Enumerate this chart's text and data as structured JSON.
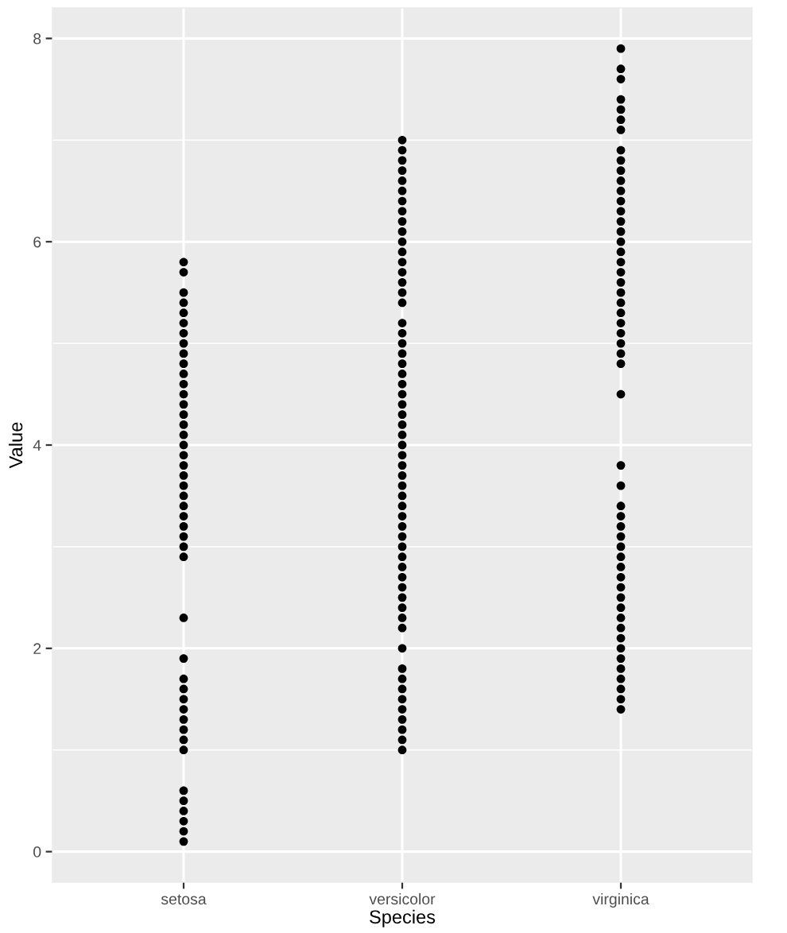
{
  "chart_data": {
    "type": "scatter",
    "xlabel": "Species",
    "ylabel": "Value",
    "categories": [
      "setosa",
      "versicolor",
      "virginica"
    ],
    "ylim": [
      -0.3,
      8.3
    ],
    "yticks": [
      0,
      2,
      4,
      6,
      8
    ],
    "grid": true,
    "marker": "circle",
    "series": [
      {
        "color": "#000000",
        "x": [
          "setosa",
          "setosa",
          "setosa",
          "setosa",
          "setosa",
          "setosa",
          "setosa",
          "setosa",
          "setosa",
          "setosa",
          "setosa",
          "setosa",
          "setosa",
          "setosa",
          "setosa",
          "setosa",
          "setosa",
          "setosa",
          "setosa",
          "setosa",
          "setosa",
          "setosa",
          "setosa",
          "setosa",
          "setosa",
          "setosa",
          "setosa",
          "setosa",
          "setosa",
          "setosa",
          "setosa",
          "setosa",
          "setosa",
          "setosa",
          "setosa",
          "setosa",
          "setosa",
          "setosa",
          "setosa",
          "setosa",
          "setosa",
          "setosa",
          "setosa",
          "setosa",
          "setosa",
          "versicolor",
          "versicolor",
          "versicolor",
          "versicolor",
          "versicolor",
          "versicolor",
          "versicolor",
          "versicolor",
          "versicolor",
          "versicolor",
          "versicolor",
          "versicolor",
          "versicolor",
          "versicolor",
          "versicolor",
          "versicolor",
          "versicolor",
          "versicolor",
          "versicolor",
          "versicolor",
          "versicolor",
          "versicolor",
          "versicolor",
          "versicolor",
          "versicolor",
          "versicolor",
          "versicolor",
          "versicolor",
          "versicolor",
          "versicolor",
          "versicolor",
          "versicolor",
          "versicolor",
          "versicolor",
          "versicolor",
          "versicolor",
          "versicolor",
          "versicolor",
          "versicolor",
          "versicolor",
          "versicolor",
          "versicolor",
          "versicolor",
          "versicolor",
          "versicolor",
          "versicolor",
          "versicolor",
          "versicolor",
          "versicolor",
          "versicolor",
          "versicolor",
          "versicolor",
          "versicolor",
          "versicolor",
          "versicolor",
          "versicolor",
          "versicolor",
          "versicolor",
          "virginica",
          "virginica",
          "virginica",
          "virginica",
          "virginica",
          "virginica",
          "virginica",
          "virginica",
          "virginica",
          "virginica",
          "virginica",
          "virginica",
          "virginica",
          "virginica",
          "virginica",
          "virginica",
          "virginica",
          "virginica",
          "virginica",
          "virginica",
          "virginica",
          "virginica",
          "virginica",
          "virginica",
          "virginica",
          "virginica",
          "virginica",
          "virginica",
          "virginica",
          "virginica",
          "virginica",
          "virginica",
          "virginica",
          "virginica",
          "virginica",
          "virginica",
          "virginica",
          "virginica",
          "virginica",
          "virginica",
          "virginica",
          "virginica",
          "virginica",
          "virginica",
          "virginica",
          "virginica",
          "virginica",
          "virginica",
          "virginica",
          "virginica",
          "virginica",
          "virginica",
          "virginica"
        ],
        "values": [
          0.1,
          0.2,
          0.3,
          0.4,
          0.5,
          0.6,
          1.0,
          1.1,
          1.2,
          1.3,
          1.4,
          1.5,
          1.6,
          1.7,
          1.9,
          2.3,
          2.9,
          3.0,
          3.1,
          3.2,
          3.3,
          3.4,
          3.5,
          3.6,
          3.7,
          3.8,
          3.9,
          4.0,
          4.1,
          4.2,
          4.3,
          4.4,
          4.5,
          4.6,
          4.7,
          4.8,
          4.9,
          5.0,
          5.1,
          5.2,
          5.3,
          5.4,
          5.5,
          5.7,
          5.8,
          1.0,
          1.1,
          1.2,
          1.3,
          1.4,
          1.5,
          1.6,
          1.7,
          1.8,
          2.0,
          2.2,
          2.3,
          2.4,
          2.5,
          2.6,
          2.7,
          2.8,
          2.9,
          3.0,
          3.1,
          3.2,
          3.3,
          3.4,
          3.5,
          3.6,
          3.7,
          3.8,
          3.9,
          4.0,
          4.1,
          4.2,
          4.3,
          4.4,
          4.5,
          4.6,
          4.7,
          4.8,
          4.9,
          5.0,
          5.1,
          5.2,
          5.4,
          5.5,
          5.6,
          5.7,
          5.8,
          5.9,
          6.0,
          6.1,
          6.2,
          6.3,
          6.4,
          6.5,
          6.6,
          6.7,
          6.8,
          6.9,
          7.0,
          1.4,
          1.5,
          1.6,
          1.7,
          1.8,
          1.9,
          2.0,
          2.1,
          2.2,
          2.3,
          2.4,
          2.5,
          2.6,
          2.7,
          2.8,
          2.9,
          3.0,
          3.1,
          3.2,
          3.3,
          3.4,
          3.6,
          3.8,
          4.5,
          4.8,
          4.9,
          5.0,
          5.1,
          5.2,
          5.3,
          5.4,
          5.5,
          5.6,
          5.7,
          5.8,
          5.9,
          6.0,
          6.1,
          6.2,
          6.3,
          6.4,
          6.5,
          6.6,
          6.7,
          6.8,
          6.9,
          7.1,
          7.2,
          7.3,
          7.4,
          7.6,
          7.7,
          7.9
        ]
      }
    ]
  }
}
